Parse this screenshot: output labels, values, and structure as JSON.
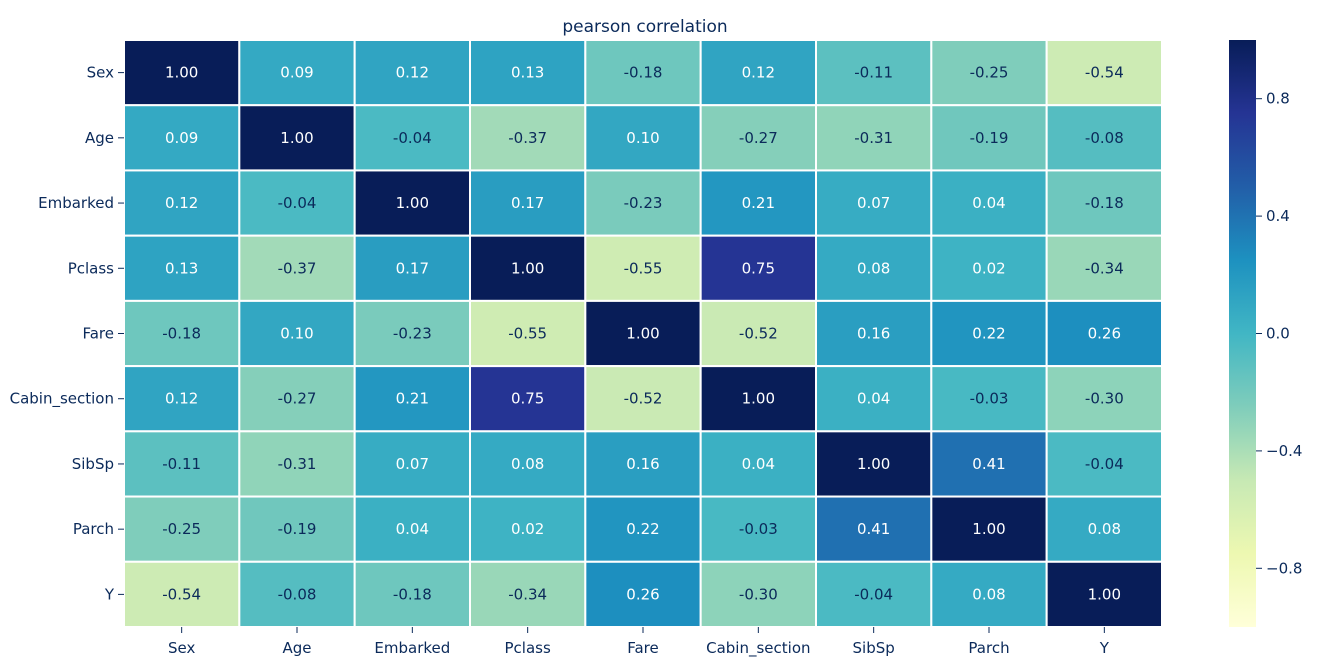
{
  "chart_data": {
    "type": "heatmap",
    "title": "pearson correlation",
    "rows": [
      "Sex",
      "Age",
      "Embarked",
      "Pclass",
      "Fare",
      "Cabin_section",
      "SibSp",
      "Parch",
      "Y"
    ],
    "columns": [
      "Sex",
      "Age",
      "Embarked",
      "Pclass",
      "Fare",
      "Cabin_section",
      "SibSp",
      "Parch",
      "Y"
    ],
    "values": [
      [
        1.0,
        0.09,
        0.12,
        0.13,
        -0.18,
        0.12,
        -0.11,
        -0.25,
        -0.54
      ],
      [
        0.09,
        1.0,
        -0.04,
        -0.37,
        0.1,
        -0.27,
        -0.31,
        -0.19,
        -0.08
      ],
      [
        0.12,
        -0.04,
        1.0,
        0.17,
        -0.23,
        0.21,
        0.07,
        0.04,
        -0.18
      ],
      [
        0.13,
        -0.37,
        0.17,
        1.0,
        -0.55,
        0.75,
        0.08,
        0.02,
        -0.34
      ],
      [
        -0.18,
        0.1,
        -0.23,
        -0.55,
        1.0,
        -0.52,
        0.16,
        0.22,
        0.26
      ],
      [
        0.12,
        -0.27,
        0.21,
        0.75,
        -0.52,
        1.0,
        0.04,
        -0.03,
        -0.3
      ],
      [
        -0.11,
        -0.31,
        0.07,
        0.08,
        0.16,
        0.04,
        1.0,
        0.41,
        -0.04
      ],
      [
        -0.25,
        -0.19,
        0.04,
        0.02,
        0.22,
        -0.03,
        0.41,
        1.0,
        0.08
      ],
      [
        -0.54,
        -0.08,
        -0.18,
        -0.34,
        0.26,
        -0.3,
        -0.04,
        0.08,
        1.0
      ]
    ],
    "value_format": "0.00",
    "colormap": "YlGnBu",
    "vmin": -1.0,
    "vmax": 1.0,
    "annotations": true,
    "colorbar": {
      "ticks": [
        0.8,
        0.4,
        0.0,
        -0.4,
        -0.8
      ],
      "tick_labels": [
        "0.8",
        "0.4",
        "0.0",
        "−0.4",
        "−0.8"
      ],
      "placement": "right"
    },
    "colors": {
      "cell_border": "#ffffff",
      "text_dark": "#0b2a5a",
      "text_light": "#ffffff"
    }
  }
}
